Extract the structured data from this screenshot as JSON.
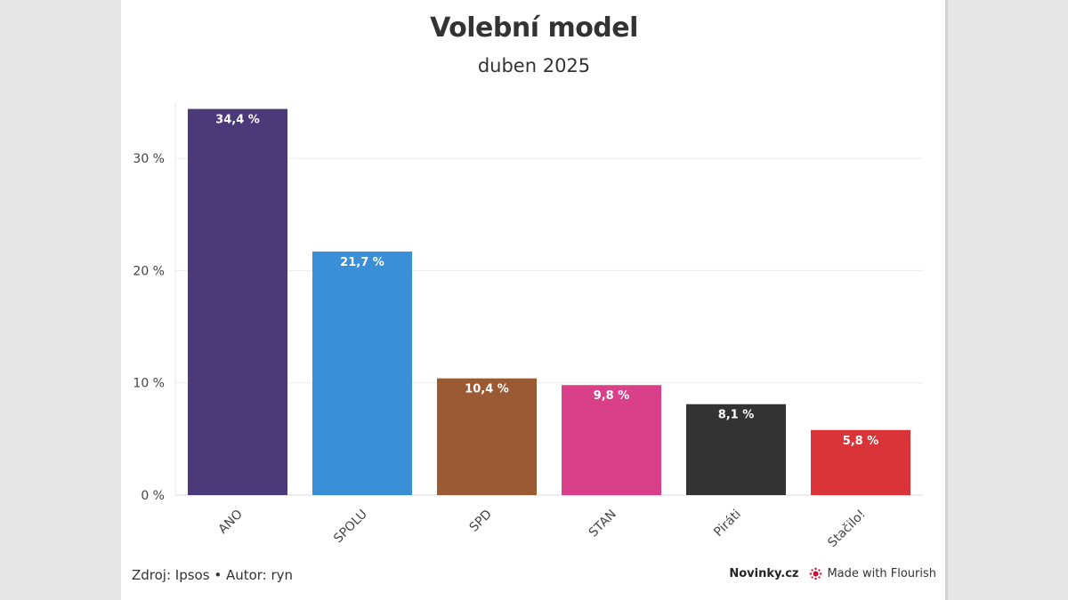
{
  "title": "Volební model",
  "subtitle": "duben 2025",
  "footer": {
    "source": "Zdroj: Ipsos • Autor: ryn",
    "brand": "Novinky.cz",
    "flourish": "Made with Flourish"
  },
  "chart_data": {
    "type": "bar",
    "title": "Volební model",
    "subtitle": "duben 2025",
    "categories": [
      "ANO",
      "SPOLU",
      "SPD",
      "STAN",
      "Piráti",
      "Stačilo!"
    ],
    "values": [
      34.4,
      21.7,
      10.4,
      9.8,
      8.1,
      5.8
    ],
    "value_labels": [
      "34,4 %",
      "21,7 %",
      "10,4 %",
      "9,8 %",
      "8,1 %",
      "5,8 %"
    ],
    "colors": [
      "#4b3a7a",
      "#3a8fd6",
      "#9a5a34",
      "#d94089",
      "#333333",
      "#d93437"
    ],
    "yticks": [
      0,
      10,
      20,
      30
    ],
    "ytick_labels": [
      "0 %",
      "10 %",
      "20 %",
      "30 %"
    ],
    "ylim": [
      0,
      35
    ],
    "xlabel": "",
    "ylabel": "",
    "grid": true,
    "legend": "none"
  }
}
